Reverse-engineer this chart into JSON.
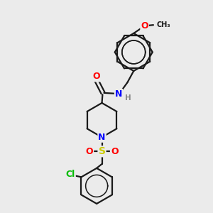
{
  "bg_color": "#ebebeb",
  "bond_color": "#1a1a1a",
  "bond_width": 1.6,
  "atom_colors": {
    "O": "#ff0000",
    "N": "#0000ff",
    "S": "#cccc00",
    "Cl": "#00bb00",
    "H": "#888888",
    "C": "#1a1a1a"
  },
  "font_size": 8.5,
  "fig_size": [
    3.0,
    3.0
  ],
  "dpi": 100
}
